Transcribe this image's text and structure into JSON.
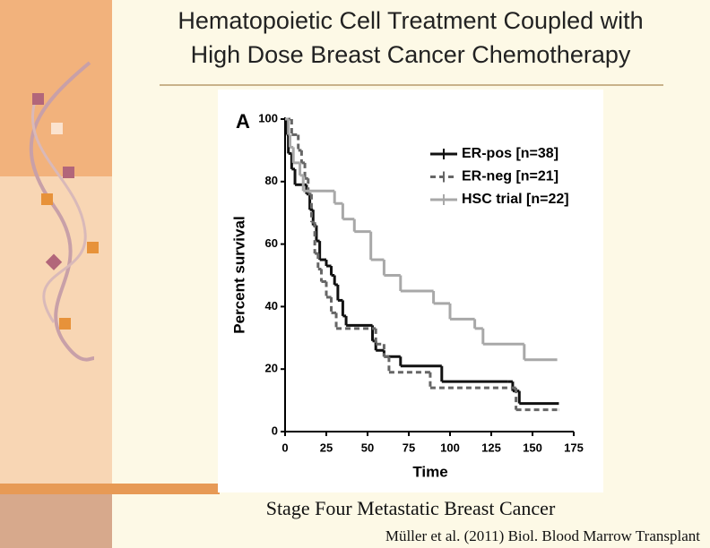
{
  "slide": {
    "title_lines": [
      "Hematopoietic Cell Treatment Coupled with",
      "High Dose Breast Cancer Chemotherapy"
    ],
    "caption": "Stage Four Metastatic Breast Cancer",
    "citation": "Müller et al. (2011) Biol. Blood Marrow Transplant"
  },
  "chart_data": {
    "type": "step",
    "panel_label": "A",
    "x_label": "Time",
    "y_label": "Percent survival",
    "xlim": [
      0,
      175
    ],
    "xticks": [
      0,
      25,
      50,
      75,
      100,
      125,
      150,
      175
    ],
    "ylim": [
      0,
      100
    ],
    "yticks": [
      0,
      20,
      40,
      60,
      80,
      100
    ],
    "legend": "upper right",
    "series": [
      {
        "name": "ER-pos [n=38]",
        "color": "#111111",
        "dash": "none",
        "x": [
          0,
          1,
          2,
          4,
          6,
          13,
          15,
          17,
          19,
          21,
          25,
          28,
          30,
          32,
          35,
          37,
          53,
          55,
          60,
          70,
          95,
          135,
          138,
          142,
          166
        ],
        "values": [
          100,
          95,
          89,
          84,
          79,
          76,
          71,
          66,
          61,
          55,
          53,
          50,
          47,
          42,
          37,
          34,
          29,
          26,
          24,
          21,
          16,
          16,
          13,
          9,
          9
        ]
      },
      {
        "name": "ER-neg [n=21]",
        "color": "#666666",
        "dash": "6,4",
        "x": [
          0,
          4,
          8,
          10,
          12,
          14,
          16,
          18,
          20,
          22,
          25,
          28,
          31,
          55,
          60,
          63,
          88,
          140,
          166
        ],
        "values": [
          100,
          95,
          90,
          86,
          81,
          76,
          67,
          57,
          52,
          48,
          43,
          38,
          33,
          28,
          24,
          19,
          14,
          7,
          7
        ]
      },
      {
        "name": "HSC trial [n=22]",
        "color": "#a8a8a8",
        "dash": "none",
        "x": [
          0,
          2,
          3,
          5,
          9,
          11,
          25,
          30,
          35,
          42,
          52,
          60,
          70,
          90,
          100,
          115,
          120,
          145,
          165
        ],
        "values": [
          100,
          95,
          91,
          86,
          82,
          77,
          77,
          73,
          68,
          64,
          55,
          50,
          45,
          41,
          36,
          33,
          28,
          23,
          23
        ]
      }
    ]
  }
}
